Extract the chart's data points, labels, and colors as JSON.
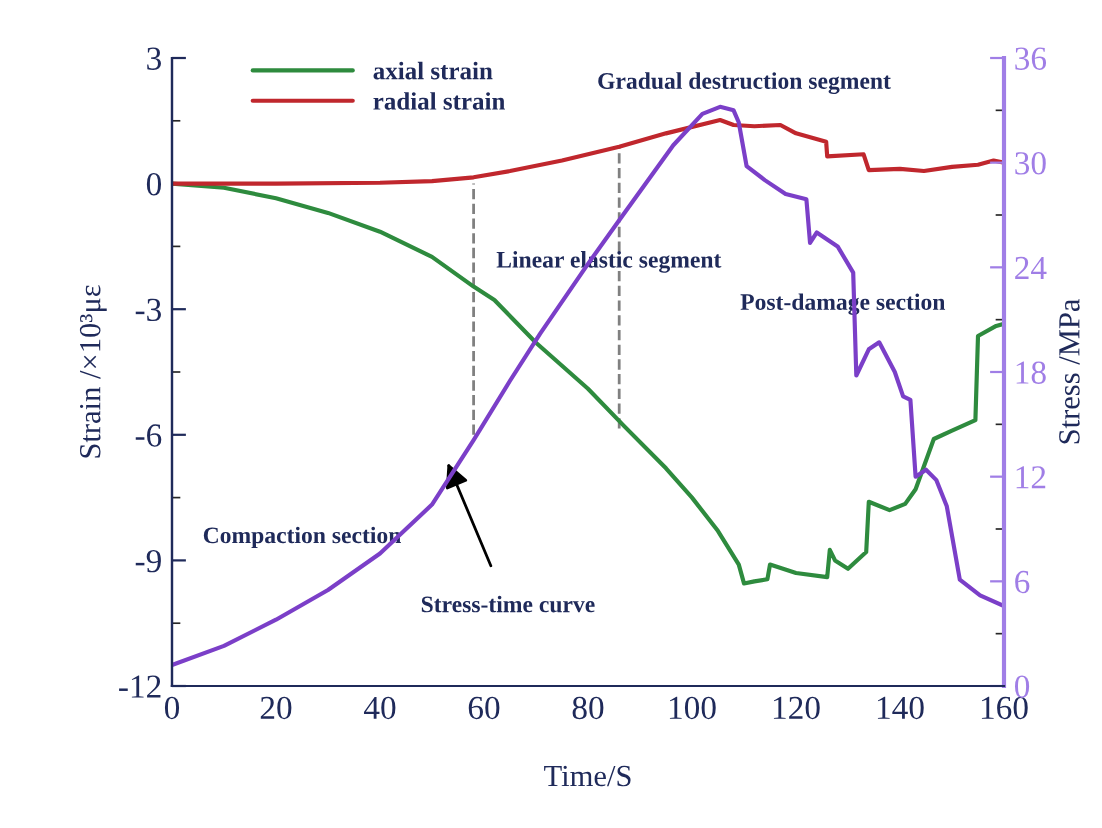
{
  "chart_data": {
    "type": "line",
    "xlabel": "Time/S",
    "ylabel": "Strain /×10³με",
    "y2label": "Stress /MPa",
    "xlim": [
      0,
      160
    ],
    "xticks": [
      0,
      20,
      40,
      60,
      80,
      100,
      120,
      140,
      160
    ],
    "ylim": [
      -12,
      3
    ],
    "yticks": [
      -12,
      -9,
      -6,
      -3,
      0,
      3
    ],
    "y2lim": [
      0,
      36
    ],
    "y2ticks": [
      0,
      6,
      12,
      18,
      24,
      30,
      36
    ],
    "legend": "top left",
    "grid": false,
    "marker": "none",
    "line_style": "solid",
    "series": [
      {
        "name": "axial strain",
        "color": "#2e8b3e",
        "x": [
          0,
          10,
          20,
          30,
          40,
          50,
          58,
          62,
          70,
          80,
          87,
          95,
          100,
          105,
          109,
          110,
          112,
          114.5,
          115,
          120,
          126,
          126.5,
          127.5,
          130,
          133.5,
          134,
          138,
          141,
          143,
          146.5,
          150,
          154.5,
          155,
          158.5,
          160
        ],
        "values": [
          0,
          -0.1,
          -0.35,
          -0.7,
          -1.15,
          -1.75,
          -2.46,
          -2.78,
          -3.8,
          -4.9,
          -5.8,
          -6.8,
          -7.5,
          -8.3,
          -9.1,
          -9.55,
          -9.5,
          -9.45,
          -9.1,
          -9.3,
          -9.4,
          -8.75,
          -9.0,
          -9.2,
          -8.8,
          -7.6,
          -7.8,
          -7.65,
          -7.3,
          -6.1,
          -5.9,
          -5.65,
          -3.64,
          -3.4,
          -3.35
        ]
      },
      {
        "name": "radial strain",
        "color": "#c0272d",
        "x": [
          0,
          20,
          40,
          50,
          58,
          65,
          75,
          86,
          95,
          105.4,
          108,
          112,
          117,
          120,
          125.8,
          126,
          133,
          134,
          140,
          144.6,
          150,
          155,
          158,
          160
        ],
        "values": [
          0,
          0,
          0.02,
          0.06,
          0.15,
          0.3,
          0.55,
          0.88,
          1.2,
          1.52,
          1.4,
          1.37,
          1.4,
          1.2,
          1.0,
          0.65,
          0.7,
          0.32,
          0.35,
          0.3,
          0.4,
          0.45,
          0.55,
          0.5
        ]
      },
      {
        "axis": "y2",
        "color": "#7b3fc8",
        "x": [
          0,
          10,
          20,
          30,
          40,
          50,
          58,
          65,
          70.8,
          80,
          86,
          96.4,
          102,
          105.4,
          108,
          109,
          110.5,
          114,
          118,
          122,
          122.7,
          124,
          128,
          131,
          131.6,
          134,
          136,
          139,
          140.6,
          142,
          143,
          145,
          147,
          149,
          151.5,
          155.4,
          159.9
        ],
        "values": [
          1.2,
          2.3,
          3.8,
          5.5,
          7.6,
          10.4,
          14.1,
          17.5,
          20.2,
          24.2,
          26.7,
          31.0,
          32.8,
          33.2,
          33.0,
          32.3,
          29.8,
          29.0,
          28.2,
          27.9,
          25.4,
          26.0,
          25.2,
          23.7,
          17.8,
          19.3,
          19.7,
          18.0,
          16.6,
          16.4,
          12.0,
          12.4,
          11.8,
          10.3,
          6.1,
          5.2,
          4.6
        ]
      }
    ],
    "annotations": [
      {
        "text": "Gradual destruction segment"
      },
      {
        "text": "Linear elastic segment"
      },
      {
        "text": "Post-damage section"
      },
      {
        "text": "Compaction section"
      },
      {
        "text": "Stress-time curve",
        "x": 53,
        "y": -6.67
      }
    ],
    "ref_lines": [
      {
        "axis": "x",
        "value": 58,
        "color": "#808080",
        "line_style": "dashed"
      },
      {
        "axis": "x",
        "value": 86,
        "color": "#808080",
        "line_style": "dashed"
      }
    ]
  }
}
